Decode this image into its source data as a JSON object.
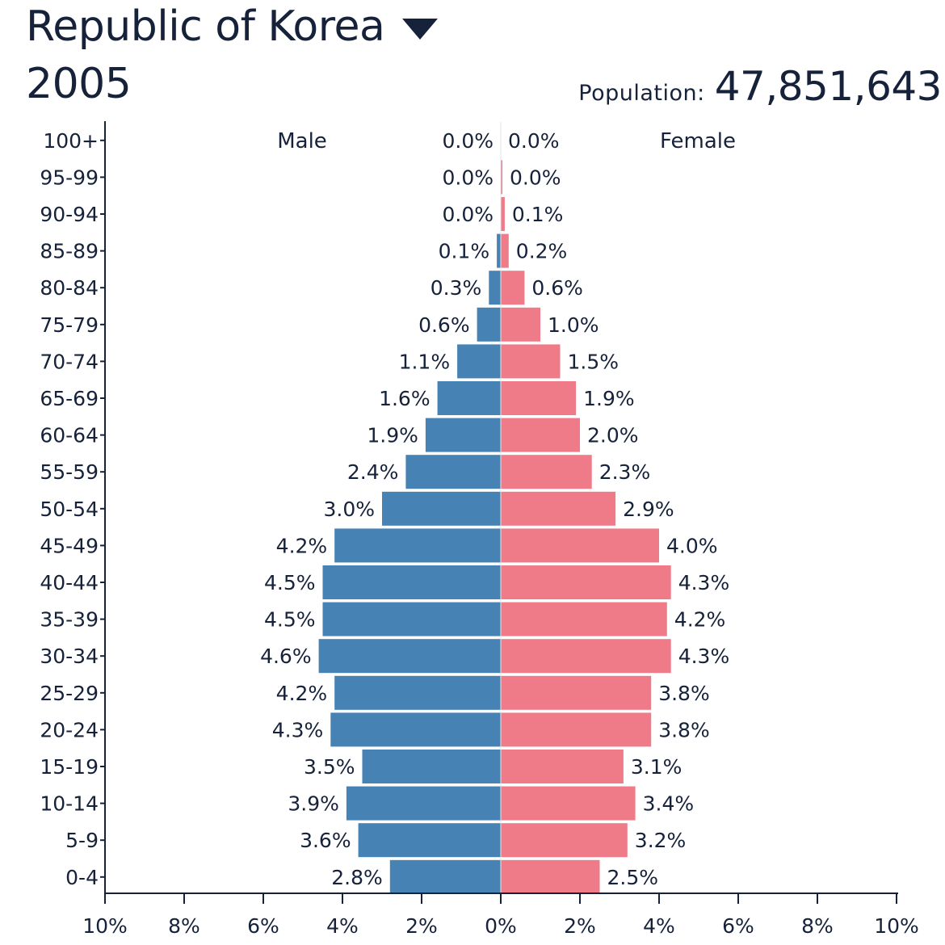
{
  "header": {
    "country": "Republic of Korea",
    "year": "2005",
    "population_label": "Population:",
    "population_value": "47,851,643"
  },
  "icons": {
    "country_dropdown": "triangle-down-icon"
  },
  "colors": {
    "male": "#4682b4",
    "female": "#ef7b89",
    "text": "#16213a"
  },
  "chart_data": {
    "type": "bar",
    "orientation": "horizontal",
    "title": "",
    "xlabel": "",
    "ylabel": "",
    "categories": [
      "100+",
      "95-99",
      "90-94",
      "85-89",
      "80-84",
      "75-79",
      "70-74",
      "65-69",
      "60-64",
      "55-59",
      "50-54",
      "45-49",
      "40-44",
      "35-39",
      "30-34",
      "25-29",
      "20-24",
      "15-19",
      "10-14",
      "5-9",
      "0-4"
    ],
    "series": [
      {
        "name": "Male",
        "side": "left",
        "values": [
          0.0,
          0.0,
          0.0,
          0.1,
          0.3,
          0.6,
          1.1,
          1.6,
          1.9,
          2.4,
          3.0,
          4.2,
          4.5,
          4.5,
          4.6,
          4.2,
          4.3,
          3.5,
          3.9,
          3.6,
          2.8
        ],
        "labels": [
          "0.0%",
          "0.0%",
          "0.0%",
          "0.1%",
          "0.3%",
          "0.6%",
          "1.1%",
          "1.6%",
          "1.9%",
          "2.4%",
          "3.0%",
          "4.2%",
          "4.5%",
          "4.5%",
          "4.6%",
          "4.2%",
          "4.3%",
          "3.5%",
          "3.9%",
          "3.6%",
          "2.8%"
        ]
      },
      {
        "name": "Female",
        "side": "right",
        "values": [
          0.0,
          0.0,
          0.1,
          0.2,
          0.6,
          1.0,
          1.5,
          1.9,
          2.0,
          2.3,
          2.9,
          4.0,
          4.3,
          4.2,
          4.3,
          3.8,
          3.8,
          3.1,
          3.4,
          3.2,
          2.5
        ],
        "labels": [
          "0.0%",
          "0.0%",
          "0.1%",
          "0.2%",
          "0.6%",
          "1.0%",
          "1.5%",
          "1.9%",
          "2.0%",
          "2.3%",
          "2.9%",
          "4.0%",
          "4.3%",
          "4.2%",
          "4.3%",
          "3.8%",
          "3.8%",
          "3.1%",
          "3.4%",
          "3.2%",
          "2.5%"
        ]
      }
    ],
    "xlim": [
      -10,
      10
    ],
    "xticks": [
      "10%",
      "8%",
      "6%",
      "4%",
      "2%",
      "0%",
      "2%",
      "4%",
      "6%",
      "8%",
      "10%"
    ],
    "grid": false
  }
}
